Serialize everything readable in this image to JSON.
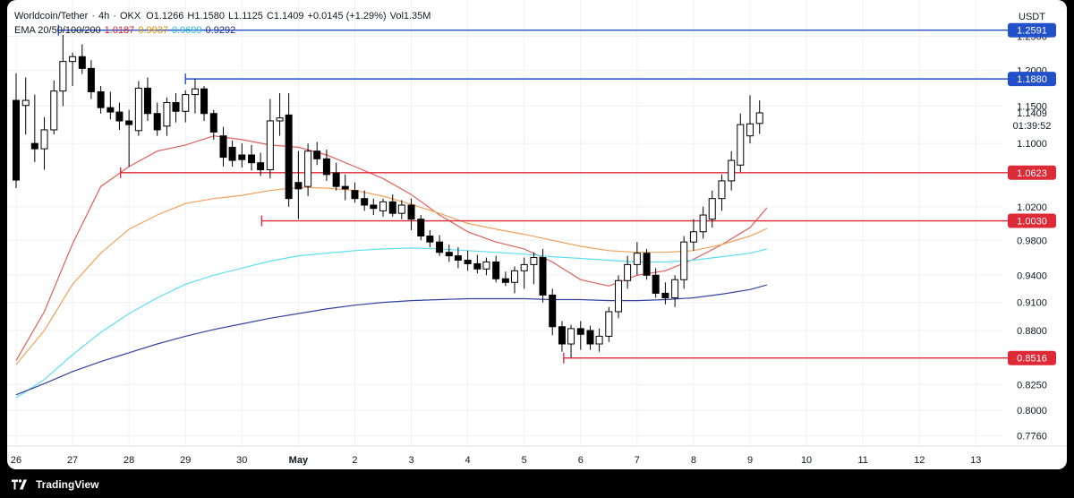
{
  "header": {
    "symbol": "Worldcoin/Tether",
    "interval": "4h",
    "exchange": "OKX",
    "open": "O1.1266",
    "high": "H1.1580",
    "low": "L1.1125",
    "close": "C1.1409",
    "change": "+0.0145 (+1.29%)",
    "volume": "Vol1.35M",
    "ema_label": "EMA 20/50/100/200",
    "ema20": "1.0187",
    "ema50": "0.9937",
    "ema100": "0.9699",
    "ema200": "0.9292",
    "currency": "USDT"
  },
  "colors": {
    "up": "#ffffff",
    "down": "#000000",
    "candle_border": "#000000",
    "ema20": "#e0605a",
    "ema50": "#f0a15a",
    "ema100": "#5ce0f0",
    "ema200": "#3344a0",
    "resistance": "#2250c8",
    "support": "#dd2a36",
    "ema20_text": "#d81e2a",
    "ema50_text": "#e58a00",
    "ema100_text": "#22b8d6",
    "ema200_text": "#1a2b8a"
  },
  "footer": {
    "brand": "TradingView"
  },
  "chart_data": {
    "type": "candlestick",
    "price_scale": "log",
    "ylim": [
      0.7667,
      1.3053
    ],
    "x_ticks": [
      {
        "day": 26,
        "label": "26"
      },
      {
        "day": 27,
        "label": "27"
      },
      {
        "day": 28,
        "label": "28"
      },
      {
        "day": 29,
        "label": "29"
      },
      {
        "day": 30,
        "label": "30"
      },
      {
        "day": 31,
        "label": "May"
      },
      {
        "day": 32,
        "label": "2"
      },
      {
        "day": 33,
        "label": "3"
      },
      {
        "day": 34,
        "label": "4"
      },
      {
        "day": 35,
        "label": "5"
      },
      {
        "day": 36,
        "label": "6"
      },
      {
        "day": 37,
        "label": "7"
      },
      {
        "day": 38,
        "label": "8"
      },
      {
        "day": 39,
        "label": "9"
      },
      {
        "day": 40,
        "label": "10"
      },
      {
        "day": 41,
        "label": "11"
      },
      {
        "day": 42,
        "label": "12"
      },
      {
        "day": 43,
        "label": "13"
      }
    ],
    "y_ticks": [
      "1.2500",
      "1.2000",
      "1.1500",
      "1.1000",
      "1.0200",
      "0.9800",
      "0.9400",
      "0.9100",
      "0.8800",
      "0.8250",
      "0.8000",
      "0.7760"
    ],
    "levels": [
      {
        "price": 1.2591,
        "label": "1.2591",
        "kind": "resistance",
        "from_day": 26.75
      },
      {
        "price": 1.188,
        "label": "1.1880",
        "kind": "resistance",
        "from_day": 29.0
      },
      {
        "price": 1.0623,
        "label": "1.0623",
        "kind": "support",
        "from_day": 27.85
      },
      {
        "price": 1.003,
        "label": "1.0030",
        "kind": "support",
        "from_day": 30.35
      },
      {
        "price": 0.8516,
        "label": "0.8516",
        "kind": "support",
        "from_day": 35.7
      }
    ],
    "last_price": {
      "price": 1.1409,
      "label": "1.1409",
      "countdown": "01:39:52"
    },
    "candles": [
      {
        "t": 26.0,
        "o": 1.158,
        "h": 1.196,
        "l": 1.043,
        "c": 1.053
      },
      {
        "t": 26.17,
        "o": 1.151,
        "h": 1.19,
        "l": 1.112,
        "c": 1.158
      },
      {
        "t": 26.33,
        "o": 1.1,
        "h": 1.166,
        "l": 1.076,
        "c": 1.093
      },
      {
        "t": 26.5,
        "o": 1.093,
        "h": 1.135,
        "l": 1.066,
        "c": 1.118
      },
      {
        "t": 26.67,
        "o": 1.118,
        "h": 1.186,
        "l": 1.112,
        "c": 1.171
      },
      {
        "t": 26.83,
        "o": 1.171,
        "h": 1.252,
        "l": 1.15,
        "c": 1.213
      },
      {
        "t": 27.0,
        "o": 1.213,
        "h": 1.226,
        "l": 1.178,
        "c": 1.22
      },
      {
        "t": 27.17,
        "o": 1.22,
        "h": 1.238,
        "l": 1.195,
        "c": 1.203
      },
      {
        "t": 27.33,
        "o": 1.203,
        "h": 1.215,
        "l": 1.16,
        "c": 1.17
      },
      {
        "t": 27.5,
        "o": 1.17,
        "h": 1.178,
        "l": 1.14,
        "c": 1.148
      },
      {
        "t": 27.67,
        "o": 1.148,
        "h": 1.17,
        "l": 1.132,
        "c": 1.142
      },
      {
        "t": 27.83,
        "o": 1.142,
        "h": 1.155,
        "l": 1.118,
        "c": 1.13
      },
      {
        "t": 28.0,
        "o": 1.13,
        "h": 1.145,
        "l": 1.07,
        "c": 1.125
      },
      {
        "t": 28.17,
        "o": 1.117,
        "h": 1.185,
        "l": 1.11,
        "c": 1.175
      },
      {
        "t": 28.33,
        "o": 1.175,
        "h": 1.19,
        "l": 1.13,
        "c": 1.14
      },
      {
        "t": 28.5,
        "o": 1.14,
        "h": 1.155,
        "l": 1.11,
        "c": 1.118
      },
      {
        "t": 28.67,
        "o": 1.123,
        "h": 1.162,
        "l": 1.11,
        "c": 1.155
      },
      {
        "t": 28.83,
        "o": 1.155,
        "h": 1.168,
        "l": 1.128,
        "c": 1.143
      },
      {
        "t": 29.0,
        "o": 1.143,
        "h": 1.172,
        "l": 1.128,
        "c": 1.166
      },
      {
        "t": 29.17,
        "o": 1.166,
        "h": 1.188,
        "l": 1.14,
        "c": 1.174
      },
      {
        "t": 29.33,
        "o": 1.174,
        "h": 1.178,
        "l": 1.13,
        "c": 1.14
      },
      {
        "t": 29.5,
        "o": 1.14,
        "h": 1.145,
        "l": 1.105,
        "c": 1.115
      },
      {
        "t": 29.67,
        "o": 1.11,
        "h": 1.122,
        "l": 1.07,
        "c": 1.082
      },
      {
        "t": 29.83,
        "o": 1.095,
        "h": 1.104,
        "l": 1.07,
        "c": 1.078
      },
      {
        "t": 30.0,
        "o": 1.085,
        "h": 1.1,
        "l": 1.069,
        "c": 1.079
      },
      {
        "t": 30.17,
        "o": 1.085,
        "h": 1.098,
        "l": 1.065,
        "c": 1.075
      },
      {
        "t": 30.33,
        "o": 1.075,
        "h": 1.088,
        "l": 1.058,
        "c": 1.066
      },
      {
        "t": 30.5,
        "o": 1.066,
        "h": 1.16,
        "l": 1.055,
        "c": 1.13
      },
      {
        "t": 30.67,
        "o": 1.13,
        "h": 1.168,
        "l": 1.11,
        "c": 1.134
      },
      {
        "t": 30.83,
        "o": 1.138,
        "h": 1.168,
        "l": 1.02,
        "c": 1.03
      },
      {
        "t": 31.0,
        "o": 1.05,
        "h": 1.09,
        "l": 1.005,
        "c": 1.042
      },
      {
        "t": 31.17,
        "o": 1.045,
        "h": 1.1,
        "l": 1.033,
        "c": 1.09
      },
      {
        "t": 31.33,
        "o": 1.09,
        "h": 1.102,
        "l": 1.072,
        "c": 1.08
      },
      {
        "t": 31.5,
        "o": 1.08,
        "h": 1.092,
        "l": 1.052,
        "c": 1.06
      },
      {
        "t": 31.67,
        "o": 1.062,
        "h": 1.075,
        "l": 1.04,
        "c": 1.045
      },
      {
        "t": 31.83,
        "o": 1.045,
        "h": 1.06,
        "l": 1.028,
        "c": 1.042
      },
      {
        "t": 32.0,
        "o": 1.04,
        "h": 1.05,
        "l": 1.025,
        "c": 1.03
      },
      {
        "t": 32.17,
        "o": 1.03,
        "h": 1.04,
        "l": 1.015,
        "c": 1.022
      },
      {
        "t": 32.33,
        "o": 1.022,
        "h": 1.03,
        "l": 1.01,
        "c": 1.018
      },
      {
        "t": 32.5,
        "o": 1.015,
        "h": 1.03,
        "l": 1.008,
        "c": 1.026
      },
      {
        "t": 32.67,
        "o": 1.026,
        "h": 1.035,
        "l": 1.008,
        "c": 1.012
      },
      {
        "t": 32.83,
        "o": 1.012,
        "h": 1.028,
        "l": 1.005,
        "c": 1.022
      },
      {
        "t": 33.0,
        "o": 1.022,
        "h": 1.03,
        "l": 0.992,
        "c": 1.005
      },
      {
        "t": 33.17,
        "o": 1.005,
        "h": 1.01,
        "l": 0.98,
        "c": 0.985
      },
      {
        "t": 33.33,
        "o": 0.985,
        "h": 0.992,
        "l": 0.972,
        "c": 0.978
      },
      {
        "t": 33.5,
        "o": 0.978,
        "h": 0.986,
        "l": 0.962,
        "c": 0.966
      },
      {
        "t": 33.67,
        "o": 0.966,
        "h": 0.975,
        "l": 0.955,
        "c": 0.962
      },
      {
        "t": 33.83,
        "o": 0.962,
        "h": 0.972,
        "l": 0.948,
        "c": 0.957
      },
      {
        "t": 34.0,
        "o": 0.957,
        "h": 0.968,
        "l": 0.945,
        "c": 0.953
      },
      {
        "t": 34.17,
        "o": 0.953,
        "h": 0.963,
        "l": 0.942,
        "c": 0.947
      },
      {
        "t": 34.33,
        "o": 0.947,
        "h": 0.96,
        "l": 0.94,
        "c": 0.955
      },
      {
        "t": 34.5,
        "o": 0.955,
        "h": 0.962,
        "l": 0.932,
        "c": 0.936
      },
      {
        "t": 34.67,
        "o": 0.936,
        "h": 0.944,
        "l": 0.928,
        "c": 0.932
      },
      {
        "t": 34.83,
        "o": 0.932,
        "h": 0.95,
        "l": 0.92,
        "c": 0.945
      },
      {
        "t": 35.0,
        "o": 0.945,
        "h": 0.96,
        "l": 0.925,
        "c": 0.952
      },
      {
        "t": 35.17,
        "o": 0.952,
        "h": 0.966,
        "l": 0.93,
        "c": 0.96
      },
      {
        "t": 35.33,
        "o": 0.96,
        "h": 0.97,
        "l": 0.91,
        "c": 0.918
      },
      {
        "t": 35.5,
        "o": 0.918,
        "h": 0.925,
        "l": 0.875,
        "c": 0.884
      },
      {
        "t": 35.67,
        "o": 0.884,
        "h": 0.89,
        "l": 0.858,
        "c": 0.866
      },
      {
        "t": 35.83,
        "o": 0.866,
        "h": 0.886,
        "l": 0.852,
        "c": 0.882
      },
      {
        "t": 36.0,
        "o": 0.882,
        "h": 0.89,
        "l": 0.86,
        "c": 0.876
      },
      {
        "t": 36.17,
        "o": 0.88,
        "h": 0.885,
        "l": 0.86,
        "c": 0.866
      },
      {
        "t": 36.33,
        "o": 0.866,
        "h": 0.882,
        "l": 0.858,
        "c": 0.874
      },
      {
        "t": 36.5,
        "o": 0.874,
        "h": 0.905,
        "l": 0.868,
        "c": 0.9
      },
      {
        "t": 36.67,
        "o": 0.9,
        "h": 0.94,
        "l": 0.893,
        "c": 0.934
      },
      {
        "t": 36.83,
        "o": 0.934,
        "h": 0.962,
        "l": 0.925,
        "c": 0.952
      },
      {
        "t": 37.0,
        "o": 0.952,
        "h": 0.978,
        "l": 0.94,
        "c": 0.965
      },
      {
        "t": 37.17,
        "o": 0.965,
        "h": 0.97,
        "l": 0.935,
        "c": 0.94
      },
      {
        "t": 37.33,
        "o": 0.94,
        "h": 0.948,
        "l": 0.915,
        "c": 0.92
      },
      {
        "t": 37.5,
        "o": 0.92,
        "h": 0.932,
        "l": 0.908,
        "c": 0.915
      },
      {
        "t": 37.67,
        "o": 0.915,
        "h": 0.94,
        "l": 0.905,
        "c": 0.935
      },
      {
        "t": 37.83,
        "o": 0.935,
        "h": 0.985,
        "l": 0.925,
        "c": 0.978
      },
      {
        "t": 38.0,
        "o": 0.978,
        "h": 1.005,
        "l": 0.968,
        "c": 0.99
      },
      {
        "t": 38.17,
        "o": 0.99,
        "h": 1.02,
        "l": 0.982,
        "c": 1.01
      },
      {
        "t": 38.33,
        "o": 1.005,
        "h": 1.04,
        "l": 0.995,
        "c": 1.03
      },
      {
        "t": 38.5,
        "o": 1.03,
        "h": 1.06,
        "l": 1.015,
        "c": 1.052
      },
      {
        "t": 38.67,
        "o": 1.052,
        "h": 1.09,
        "l": 1.04,
        "c": 1.078
      },
      {
        "t": 38.83,
        "o": 1.072,
        "h": 1.14,
        "l": 1.063,
        "c": 1.125
      },
      {
        "t": 39.0,
        "o": 1.11,
        "h": 1.165,
        "l": 1.1,
        "c": 1.126
      },
      {
        "t": 39.17,
        "o": 1.1266,
        "h": 1.158,
        "l": 1.1125,
        "c": 1.1409
      }
    ],
    "ema": [
      {
        "name": "EMA 20",
        "color_key": "ema20",
        "points": [
          [
            26.0,
            0.849
          ],
          [
            26.5,
            0.9
          ],
          [
            27.0,
            0.976
          ],
          [
            27.5,
            1.045
          ],
          [
            28.0,
            1.07
          ],
          [
            28.5,
            1.09
          ],
          [
            29.0,
            1.098
          ],
          [
            29.5,
            1.11
          ],
          [
            30.0,
            1.105
          ],
          [
            30.5,
            1.098
          ],
          [
            31.0,
            1.095
          ],
          [
            31.5,
            1.085
          ],
          [
            32.0,
            1.07
          ],
          [
            32.5,
            1.055
          ],
          [
            33.0,
            1.035
          ],
          [
            33.5,
            1.01
          ],
          [
            34.0,
            0.99
          ],
          [
            34.5,
            0.978
          ],
          [
            35.0,
            0.97
          ],
          [
            35.5,
            0.955
          ],
          [
            36.0,
            0.935
          ],
          [
            36.5,
            0.928
          ],
          [
            37.0,
            0.94
          ],
          [
            37.5,
            0.945
          ],
          [
            38.0,
            0.958
          ],
          [
            38.5,
            0.975
          ],
          [
            39.0,
            0.995
          ],
          [
            39.3,
            1.0187
          ]
        ]
      },
      {
        "name": "EMA 50",
        "color_key": "ema50",
        "points": [
          [
            26.0,
            0.845
          ],
          [
            26.5,
            0.88
          ],
          [
            27.0,
            0.93
          ],
          [
            27.5,
            0.965
          ],
          [
            28.0,
            0.993
          ],
          [
            28.5,
            1.01
          ],
          [
            29.0,
            1.024
          ],
          [
            29.5,
            1.03
          ],
          [
            30.0,
            1.034
          ],
          [
            30.5,
            1.04
          ],
          [
            31.0,
            1.044
          ],
          [
            31.5,
            1.043
          ],
          [
            32.0,
            1.04
          ],
          [
            32.5,
            1.033
          ],
          [
            33.0,
            1.023
          ],
          [
            33.5,
            1.012
          ],
          [
            34.0,
            1.0
          ],
          [
            34.5,
            0.993
          ],
          [
            35.0,
            0.987
          ],
          [
            35.5,
            0.98
          ],
          [
            36.0,
            0.973
          ],
          [
            36.5,
            0.968
          ],
          [
            37.0,
            0.966
          ],
          [
            37.5,
            0.966
          ],
          [
            38.0,
            0.968
          ],
          [
            38.5,
            0.975
          ],
          [
            39.0,
            0.985
          ],
          [
            39.3,
            0.9937
          ]
        ]
      },
      {
        "name": "EMA 100",
        "color_key": "ema100",
        "points": [
          [
            26.0,
            0.812
          ],
          [
            26.5,
            0.83
          ],
          [
            27.0,
            0.855
          ],
          [
            27.5,
            0.878
          ],
          [
            28.0,
            0.898
          ],
          [
            28.5,
            0.915
          ],
          [
            29.0,
            0.93
          ],
          [
            29.5,
            0.94
          ],
          [
            30.0,
            0.948
          ],
          [
            30.5,
            0.956
          ],
          [
            31.0,
            0.962
          ],
          [
            31.5,
            0.965
          ],
          [
            32.0,
            0.968
          ],
          [
            32.5,
            0.97
          ],
          [
            33.0,
            0.971
          ],
          [
            33.5,
            0.97
          ],
          [
            34.0,
            0.968
          ],
          [
            34.5,
            0.966
          ],
          [
            35.0,
            0.964
          ],
          [
            35.5,
            0.961
          ],
          [
            36.0,
            0.959
          ],
          [
            36.5,
            0.957
          ],
          [
            37.0,
            0.955
          ],
          [
            37.5,
            0.955
          ],
          [
            38.0,
            0.957
          ],
          [
            38.5,
            0.961
          ],
          [
            39.0,
            0.965
          ],
          [
            39.3,
            0.9699
          ]
        ]
      },
      {
        "name": "EMA 200",
        "color_key": "ema200",
        "points": [
          [
            26.0,
            0.815
          ],
          [
            26.5,
            0.826
          ],
          [
            27.0,
            0.838
          ],
          [
            27.5,
            0.848
          ],
          [
            28.0,
            0.857
          ],
          [
            28.5,
            0.866
          ],
          [
            29.0,
            0.874
          ],
          [
            29.5,
            0.881
          ],
          [
            30.0,
            0.887
          ],
          [
            30.5,
            0.893
          ],
          [
            31.0,
            0.898
          ],
          [
            31.5,
            0.903
          ],
          [
            32.0,
            0.907
          ],
          [
            32.5,
            0.91
          ],
          [
            33.0,
            0.912
          ],
          [
            33.5,
            0.913
          ],
          [
            34.0,
            0.914
          ],
          [
            34.5,
            0.914
          ],
          [
            35.0,
            0.914
          ],
          [
            35.5,
            0.913
          ],
          [
            36.0,
            0.913
          ],
          [
            36.5,
            0.912
          ],
          [
            37.0,
            0.912
          ],
          [
            37.5,
            0.913
          ],
          [
            38.0,
            0.915
          ],
          [
            38.5,
            0.919
          ],
          [
            39.0,
            0.924
          ],
          [
            39.3,
            0.9292
          ]
        ]
      }
    ]
  }
}
